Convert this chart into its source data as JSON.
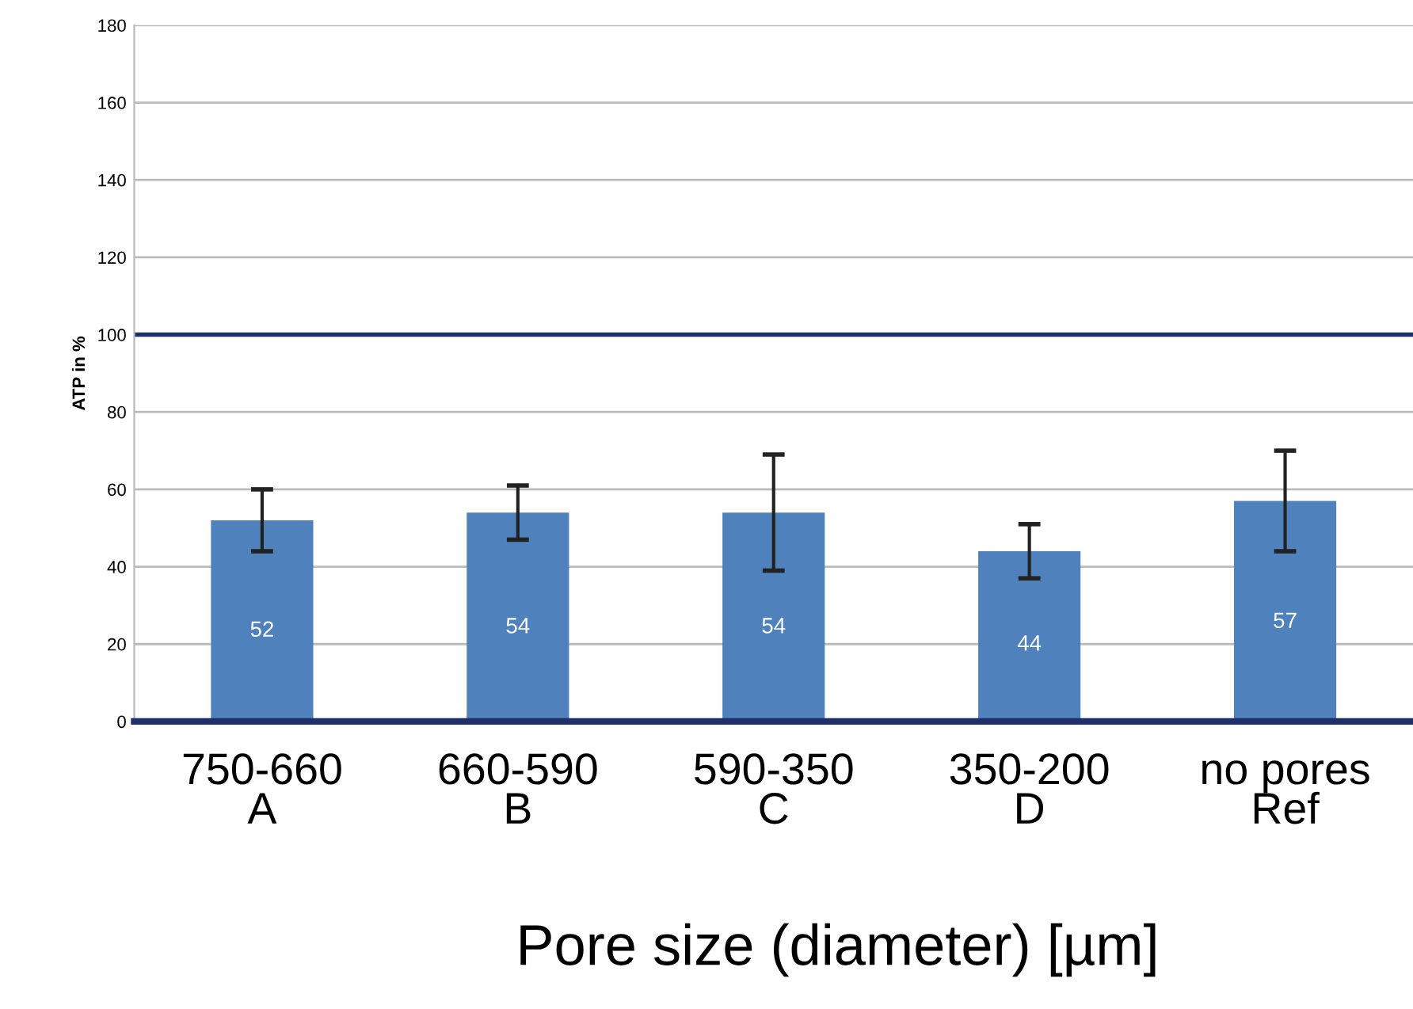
{
  "chart_data": {
    "type": "bar",
    "categories": [
      "750-660\nA",
      "660-590\nB",
      "590-350\nC",
      "350-200\nD",
      "no pores\nRef"
    ],
    "values": [
      52,
      54,
      54,
      44,
      57
    ],
    "errors": [
      8,
      7,
      15,
      7,
      13
    ],
    "color": "#4f81bd",
    "ylabel": "ATP in %",
    "xlabel": "Pore size (diameter) [µm]",
    "ylim": [
      0,
      180
    ],
    "yticks": [
      0,
      20,
      40,
      60,
      80,
      100,
      120,
      140,
      160,
      180
    ],
    "grid": "y",
    "data_labels": true,
    "ref_lines": [
      {
        "axis": "y",
        "value": 100,
        "color": "#1f2f6b"
      }
    ]
  }
}
